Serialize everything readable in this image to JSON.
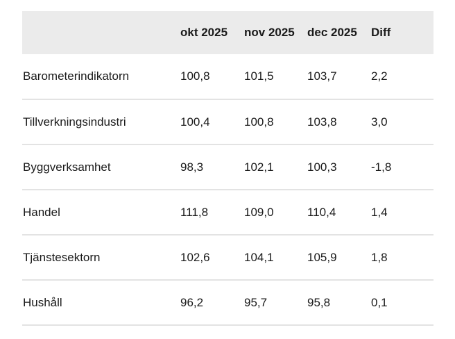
{
  "table": {
    "header": [
      "okt 2025",
      "nov 2025",
      "dec 2025",
      "Diff"
    ],
    "rows": [
      [
        "Barometerindikatorn",
        "100,8",
        "101,5",
        "103,7",
        "2,2"
      ],
      [
        "Tillverkningsindustri",
        "100,4",
        "100,8",
        "103,8",
        "3,0"
      ],
      [
        "Byggverksamhet",
        "98,3",
        "102,1",
        "100,3",
        "-1,8"
      ],
      [
        "Handel",
        "111,8",
        "109,0",
        "110,4",
        "1,4"
      ],
      [
        "Tjänstesektorn",
        "102,6",
        "104,1",
        "105,9",
        "1,8"
      ],
      [
        "Hushåll",
        "96,2",
        "95,7",
        "95,8",
        "0,1"
      ]
    ]
  }
}
